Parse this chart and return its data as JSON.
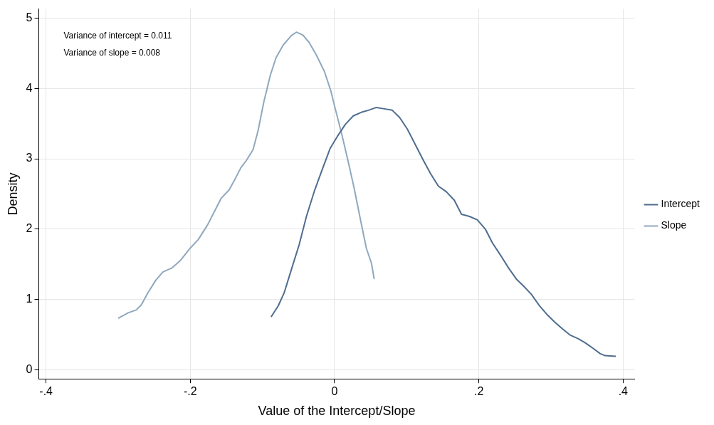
{
  "chart_data": {
    "type": "line",
    "xlabel": "Value of the Intercept/Slope",
    "ylabel": "Density",
    "xlim": [
      -0.41,
      0.416
    ],
    "ylim": [
      -0.13,
      5.13
    ],
    "xticks": [
      {
        "value": -0.4,
        "label": "-.4"
      },
      {
        "value": -0.2,
        "label": "-.2"
      },
      {
        "value": 0,
        "label": "0"
      },
      {
        "value": 0.2,
        "label": ".2"
      },
      {
        "value": 0.4,
        "label": ".4"
      }
    ],
    "yticks": [
      0,
      1,
      2,
      3,
      4,
      5
    ],
    "grid": true,
    "legend": "right",
    "marker": "none",
    "line_style": "solid",
    "annotations": [
      "Variance of intercept = 0.011",
      "Variance of slope = 0.008"
    ],
    "series": [
      {
        "name": "Intercept",
        "color": "#4f6d8f",
        "x": [
          -0.088,
          -0.078,
          -0.07,
          -0.06,
          -0.049,
          -0.039,
          -0.028,
          -0.017,
          -0.006,
          0.004,
          0.015,
          0.026,
          0.037,
          0.047,
          0.058,
          0.069,
          0.08,
          0.09,
          0.101,
          0.112,
          0.123,
          0.133,
          0.144,
          0.155,
          0.166,
          0.176,
          0.187,
          0.198,
          0.209,
          0.219,
          0.23,
          0.241,
          0.252,
          0.262,
          0.273,
          0.284,
          0.295,
          0.305,
          0.316,
          0.327,
          0.338,
          0.348,
          0.359,
          0.368,
          0.375,
          0.39
        ],
        "values": [
          0.75,
          0.91,
          1.09,
          1.42,
          1.78,
          2.18,
          2.54,
          2.85,
          3.15,
          3.32,
          3.49,
          3.61,
          3.66,
          3.69,
          3.73,
          3.71,
          3.69,
          3.59,
          3.42,
          3.2,
          2.98,
          2.79,
          2.61,
          2.53,
          2.41,
          2.21,
          2.18,
          2.13,
          2,
          1.8,
          1.63,
          1.45,
          1.29,
          1.19,
          1.07,
          0.91,
          0.78,
          0.68,
          0.58,
          0.49,
          0.44,
          0.38,
          0.3,
          0.23,
          0.2,
          0.19
        ]
      },
      {
        "name": "Slope",
        "color": "#8fa8be",
        "x": [
          -0.3,
          -0.286,
          -0.275,
          -0.268,
          -0.259,
          -0.248,
          -0.238,
          -0.225,
          -0.214,
          -0.2,
          -0.189,
          -0.176,
          -0.168,
          -0.157,
          -0.146,
          -0.138,
          -0.13,
          -0.122,
          -0.113,
          -0.106,
          -0.098,
          -0.089,
          -0.081,
          -0.071,
          -0.06,
          -0.053,
          -0.044,
          -0.035,
          -0.025,
          -0.014,
          -0.005,
          0.001,
          0.01,
          0.018,
          0.027,
          0.035,
          0.044,
          0.051,
          0.055
        ],
        "values": [
          0.73,
          0.81,
          0.85,
          0.92,
          1.09,
          1.27,
          1.39,
          1.45,
          1.55,
          1.73,
          1.85,
          2.06,
          2.22,
          2.44,
          2.56,
          2.71,
          2.87,
          2.98,
          3.13,
          3.4,
          3.81,
          4.19,
          4.44,
          4.62,
          4.75,
          4.8,
          4.76,
          4.65,
          4.47,
          4.24,
          3.96,
          3.71,
          3.35,
          3,
          2.59,
          2.18,
          1.73,
          1.52,
          1.29
        ]
      }
    ]
  }
}
